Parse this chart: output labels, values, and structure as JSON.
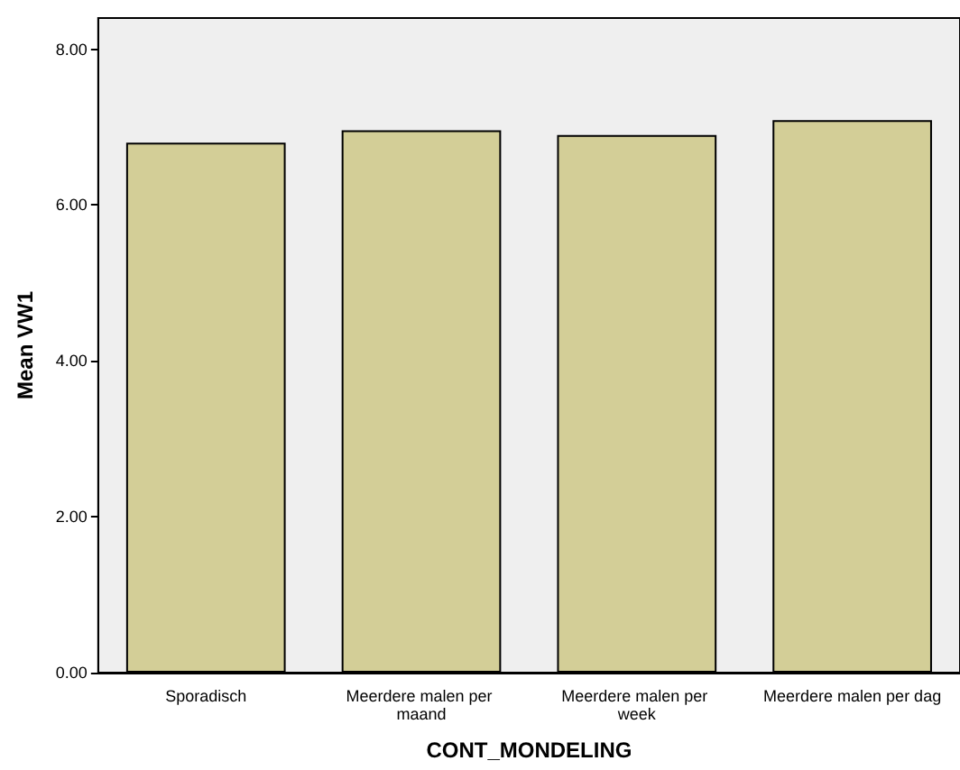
{
  "chart_data": {
    "type": "bar",
    "xlabel": "CONT_MONDELING",
    "ylabel": "Mean VW1",
    "categories": [
      "Sporadisch",
      "Meerdere malen per maand",
      "Meerdere malen per week",
      "Meerdere malen per dag"
    ],
    "values": [
      6.8,
      6.96,
      6.9,
      7.09
    ],
    "color": "#d3ce97",
    "ylim": [
      0,
      8.4
    ],
    "yticks": [
      {
        "value": 0,
        "label": "0.00"
      },
      {
        "value": 2,
        "label": "2.00"
      },
      {
        "value": 4,
        "label": "4.00"
      },
      {
        "value": 6,
        "label": "6.00"
      },
      {
        "value": 8,
        "label": "8.00"
      }
    ],
    "grid": false
  }
}
